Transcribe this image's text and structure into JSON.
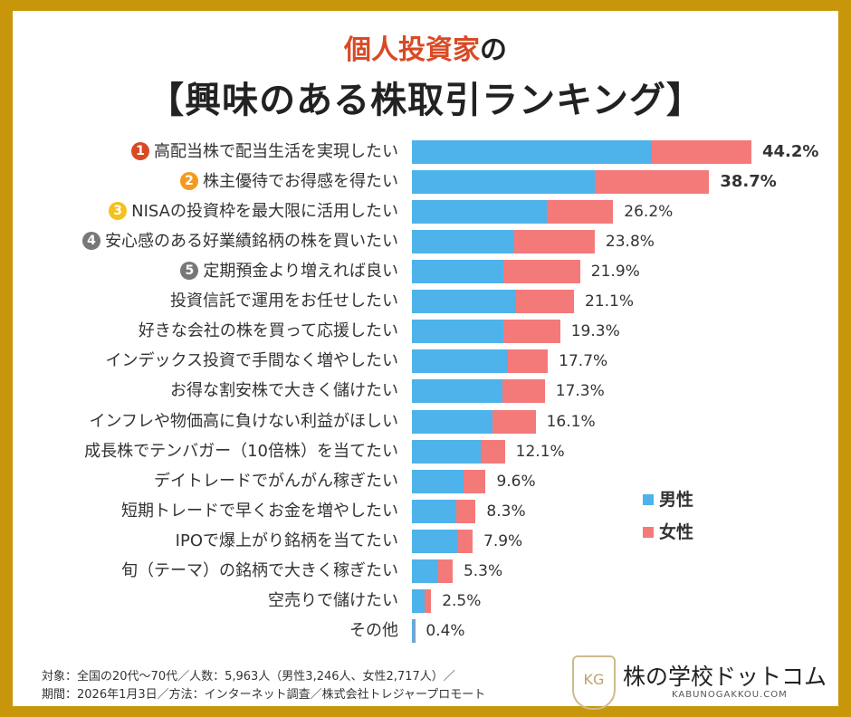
{
  "title": {
    "line1_highlight": "個人投資家",
    "line1_rest": "の",
    "line2": "【興味のある株取引ランキング】"
  },
  "colors": {
    "male": "#4db3ea",
    "female": "#f47a7a",
    "frame": "#c8960a",
    "badge1": "#d84a25",
    "badge2": "#f39a1e",
    "badge3": "#f5c21b",
    "badge_other": "#777777"
  },
  "chart_data": {
    "type": "bar",
    "orientation": "horizontal",
    "stacked": true,
    "categories": [
      "高配当株で配当生活を実現したい",
      "株主優待でお得感を得たい",
      "NISAの投資枠を最大限に活用したい",
      "安心感のある好業績銘柄の株を買いたい",
      "定期預金より増えれば良い",
      "投資信託で運用をお任せしたい",
      "好きな会社の株を買って応援したい",
      "インデックス投資で手間なく増やしたい",
      "お得な割安株で大きく儲けたい",
      "インフレや物価高に負けない利益がほしい",
      "成長株でテンバガー（10倍株）を当てたい",
      "デイトレードでがんがん稼ぎたい",
      "短期トレードで早くお金を増やしたい",
      "IPOで爆上がり銘柄を当てたい",
      "旬（テーマ）の銘柄で大きく稼ぎたい",
      "空売りで儲けたい",
      "その他"
    ],
    "ranks": [
      "1",
      "2",
      "3",
      "4",
      "5"
    ],
    "totals": [
      44.2,
      38.7,
      26.2,
      23.8,
      21.9,
      21.1,
      19.3,
      17.7,
      17.3,
      16.1,
      12.1,
      9.6,
      8.3,
      7.9,
      5.3,
      2.5,
      0.4
    ],
    "total_labels": [
      "44.2%",
      "38.7%",
      "26.2%",
      "23.8%",
      "21.9%",
      "21.1%",
      "19.3%",
      "17.7%",
      "17.3%",
      "16.1%",
      "12.1%",
      "9.6%",
      "8.3%",
      "7.9%",
      "5.3%",
      "2.5%",
      "0.4%"
    ],
    "series": [
      {
        "name": "男性",
        "values": [
          31.2,
          23.8,
          17.6,
          13.3,
          11.9,
          13.6,
          11.9,
          12.5,
          11.8,
          10.5,
          9.0,
          6.7,
          5.8,
          6.0,
          3.4,
          1.7,
          0.3
        ]
      },
      {
        "name": "女性",
        "values": [
          13.0,
          14.9,
          8.6,
          10.5,
          10.0,
          7.5,
          7.4,
          5.2,
          5.5,
          5.6,
          3.1,
          2.9,
          2.5,
          1.9,
          1.9,
          0.8,
          0.1
        ]
      }
    ],
    "xlim": [
      0,
      44.2
    ],
    "grid": false,
    "legend": "right"
  },
  "footer": {
    "line1": "対象：全国の20代～70代／人数：5,963人（男性3,246人、女性2,717人）／",
    "line2": "期間：2026年1月3日／方法：インターネット調査／株式会社トレジャープロモート"
  },
  "logo": {
    "mark": "KG",
    "name": "株の学校ドットコム",
    "url": "KABUNOGAKKOU.COM"
  }
}
